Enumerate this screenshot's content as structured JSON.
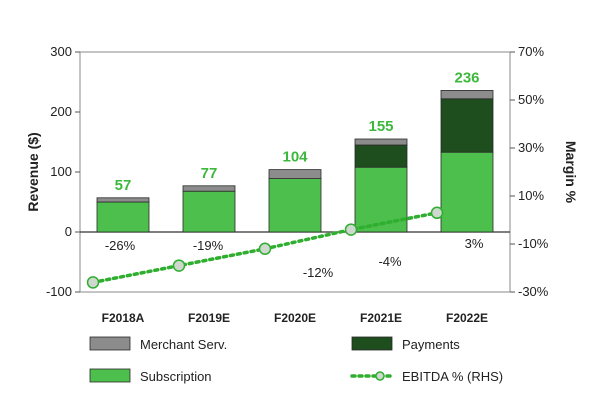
{
  "chart_data": {
    "type": "bar",
    "subtype": "stacked-bar-with-line",
    "categories": [
      "F2018A",
      "F2019E",
      "F2020E",
      "F2021E",
      "F2022E"
    ],
    "series": [
      {
        "name": "Subscription",
        "kind": "bar",
        "color": "#4cbf4c",
        "values": [
          50,
          68,
          89,
          108,
          133
        ]
      },
      {
        "name": "Payments",
        "kind": "bar",
        "color": "#1e4d1e",
        "values": [
          0,
          0,
          0,
          37,
          89
        ]
      },
      {
        "name": "Merchant Serv.",
        "kind": "bar",
        "color": "#8c8c8c",
        "values": [
          7,
          9,
          15,
          10,
          14
        ]
      },
      {
        "name": "EBITDA % (RHS)",
        "kind": "line",
        "axis": "right",
        "color": "#2fae2f",
        "values": [
          -26,
          -19,
          -12,
          -4,
          3
        ]
      }
    ],
    "totals": [
      "57",
      "77",
      "104",
      "155",
      "236"
    ],
    "ebitda_labels": [
      "-26%",
      "-19%",
      "-12%",
      "-4%",
      "3%"
    ],
    "ylabel": "Revenue ($)",
    "y2label": "Margin %",
    "ylim": [
      -100,
      300
    ],
    "y2lim": [
      -30,
      70
    ],
    "yticks": [
      "-100",
      "0",
      "100",
      "200",
      "300"
    ],
    "y2ticks": [
      "-30%",
      "-10%",
      "10%",
      "30%",
      "50%",
      "70%"
    ],
    "total_label_color": "#3db83d",
    "legend_position": "bottom",
    "grid": false
  }
}
